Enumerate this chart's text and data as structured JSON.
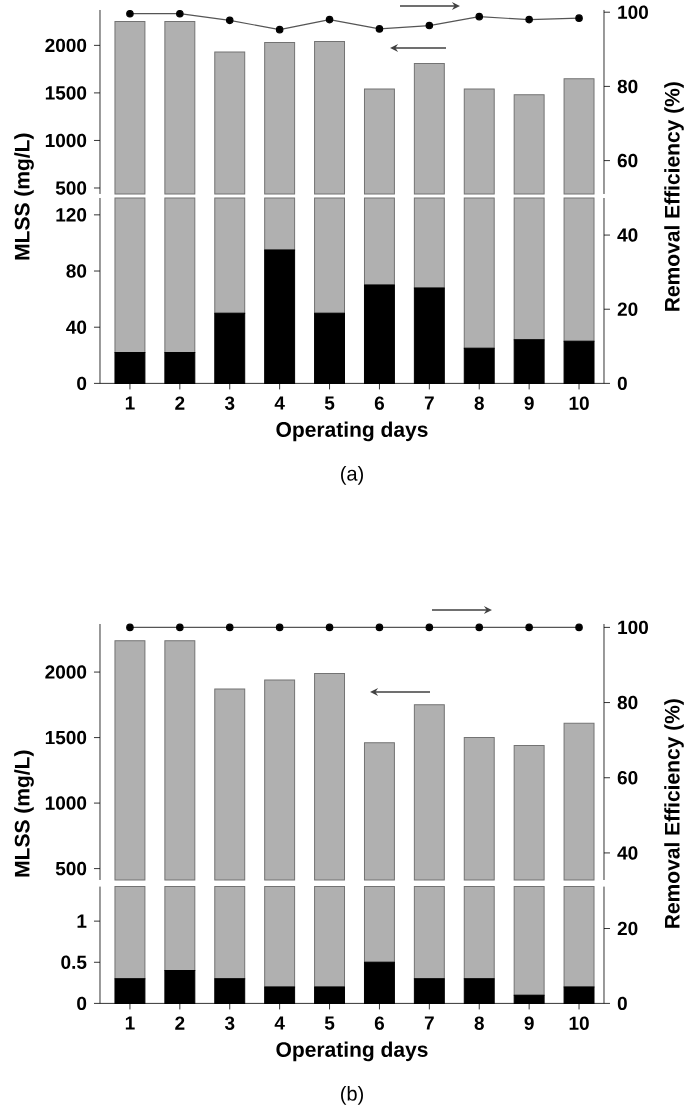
{
  "chart_data": [
    {
      "type": "bar",
      "categories": [
        "1",
        "2",
        "3",
        "4",
        "5",
        "6",
        "7",
        "8",
        "9",
        "10"
      ],
      "ylabel": "MLSS (mg/L)",
      "y2label": "Removal Efficiency (%)",
      "ylim": [
        437,
        2372
      ],
      "yticks": [
        500,
        1000,
        1500,
        2000
      ],
      "y2lim": [
        51,
        100.6
      ],
      "y2ticks": [
        60,
        80,
        100
      ],
      "tick_labels": "y",
      "series": [
        {
          "color": "#b0b0b0",
          "values": [
            2250,
            2250,
            1930,
            2030,
            2040,
            1540,
            1810,
            1540,
            1480,
            1650
          ]
        },
        {
          "type": "line",
          "axis": "y2",
          "color": "#555555",
          "marker": "circle",
          "values": [
            99.6,
            99.6,
            97.8,
            95.3,
            98,
            95.5,
            96.4,
            98.8,
            98,
            98.4
          ]
        }
      ]
    },
    {
      "type": "bar",
      "stacked": true,
      "categories": [
        "1",
        "2",
        "3",
        "4",
        "5",
        "6",
        "7",
        "8",
        "9",
        "10"
      ],
      "xlabel": "Operating days",
      "ylim": [
        0,
        132
      ],
      "yticks": [
        0,
        40,
        80,
        120
      ],
      "y2lim": [
        0,
        50
      ],
      "y2ticks": [
        0,
        20,
        40
      ],
      "annotations": [
        "(a)"
      ],
      "series": [
        {
          "color": "#000000",
          "values": [
            22,
            22,
            50,
            95,
            50,
            70,
            68,
            25,
            31,
            30
          ]
        },
        {
          "color": "#b0b0b0",
          "values": [
            110,
            110,
            82,
            37,
            82,
            62,
            64,
            107,
            101,
            102
          ]
        }
      ]
    },
    {
      "type": "bar",
      "categories": [
        "1",
        "2",
        "3",
        "4",
        "5",
        "6",
        "7",
        "8",
        "9",
        "10"
      ],
      "ylabel": "MLSS (mg/L)",
      "y2label": "Removal Efficiency (%)",
      "ylim": [
        413,
        2367
      ],
      "yticks": [
        500,
        1000,
        1500,
        2000
      ],
      "y2lim": [
        32.8,
        100.9
      ],
      "y2ticks": [
        40,
        60,
        80,
        100
      ],
      "tick_labels": "y",
      "series": [
        {
          "color": "#b0b0b0",
          "values": [
            2240,
            2240,
            1870,
            1940,
            1990,
            1460,
            1750,
            1500,
            1440,
            1610
          ]
        },
        {
          "type": "line",
          "axis": "y2",
          "color": "#555555",
          "marker": "circle",
          "values": [
            100,
            100,
            100,
            100,
            100,
            100,
            100,
            100,
            100,
            100
          ]
        }
      ]
    },
    {
      "type": "bar",
      "stacked": true,
      "categories": [
        "1",
        "2",
        "3",
        "4",
        "5",
        "6",
        "7",
        "8",
        "9",
        "10"
      ],
      "xlabel": "Operating days",
      "ylim": [
        0,
        1.42
      ],
      "yticks": [
        0,
        0.5,
        1
      ],
      "y2lim": [
        0,
        31.2
      ],
      "y2ticks": [
        0,
        20
      ],
      "annotations": [
        "(b)"
      ],
      "series": [
        {
          "color": "#000000",
          "values": [
            0.3,
            0.4,
            0.3,
            0.2,
            0.2,
            0.5,
            0.3,
            0.3,
            0.1,
            0.2
          ]
        },
        {
          "color": "#b0b0b0",
          "values": [
            1.12,
            1.02,
            1.12,
            1.22,
            1.22,
            0.92,
            1.12,
            1.12,
            1.32,
            1.22
          ]
        }
      ]
    }
  ]
}
